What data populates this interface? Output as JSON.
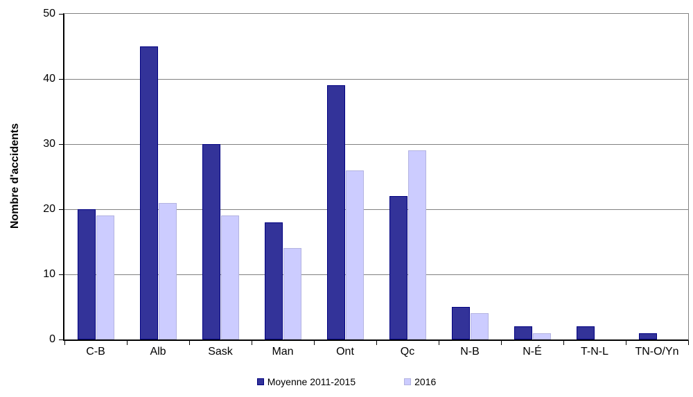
{
  "chart_data": {
    "type": "bar",
    "title": "",
    "xlabel": "",
    "ylabel": "Nombre d'accidents",
    "categories": [
      "C-B",
      "Alb",
      "Sask",
      "Man",
      "Ont",
      "Qc",
      "N-B",
      "N-É",
      "T-N-L",
      "TN-O/Yn"
    ],
    "series": [
      {
        "name": "Moyenne 2011-2015",
        "color": "#333399",
        "border_color": "#000080",
        "values": [
          20,
          45,
          30,
          18,
          39,
          22,
          5,
          2,
          2,
          1
        ]
      },
      {
        "name": "2016",
        "color": "#CCCCFF",
        "border_color": "#b3b3e0",
        "values": [
          19,
          21,
          19,
          14,
          26,
          29,
          4,
          1,
          0,
          0
        ]
      }
    ],
    "ylim": [
      0,
      50
    ],
    "yticks": [
      0,
      10,
      20,
      30,
      40,
      50
    ],
    "grid": true,
    "gridline_color": "#808080",
    "axis_color": "#000000",
    "legend_position": "bottom"
  }
}
